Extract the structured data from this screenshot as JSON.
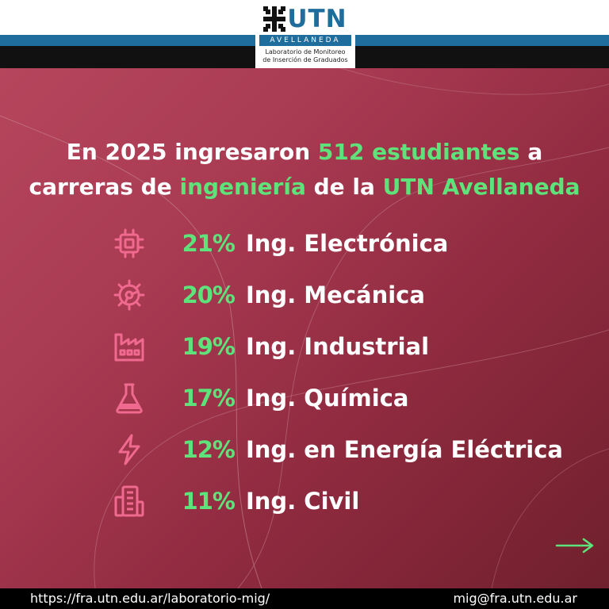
{
  "header": {
    "logo_text": "UTN",
    "logo_subtitle": "AVELLANEDA",
    "lab_line1": "Laboratorio de Monitoreo",
    "lab_line2": "de Inserción de Graduados"
  },
  "headline": {
    "part1": "En 2025 ingresaron ",
    "hl1": "512 estudiantes",
    "part2": " a carreras de ",
    "hl2": "ingeniería",
    "part3": " de la ",
    "hl3": "UTN Avellaneda"
  },
  "careers": [
    {
      "percent": "21%",
      "name": "Ing. Electrónica",
      "icon": "chip-icon"
    },
    {
      "percent": "20%",
      "name": "Ing. Mecánica",
      "icon": "gear-icon"
    },
    {
      "percent": "19%",
      "name": "Ing. Industrial",
      "icon": "factory-icon"
    },
    {
      "percent": "17%",
      "name": "Ing. Química",
      "icon": "flask-icon"
    },
    {
      "percent": "12%",
      "name": "Ing. en Energía Eléctrica",
      "icon": "lightning-icon"
    },
    {
      "percent": "11%",
      "name": "Ing. Civil",
      "icon": "building-icon"
    }
  ],
  "footer": {
    "url": "https://fra.utn.edu.ar/laboratorio-mig/",
    "email": "mig@fra.utn.edu.ar"
  },
  "colors": {
    "accent_green": "#5ee37a",
    "brand_blue": "#1f6d9c",
    "background_red": "#a83a52",
    "icon_pink": "#f06a8f"
  }
}
